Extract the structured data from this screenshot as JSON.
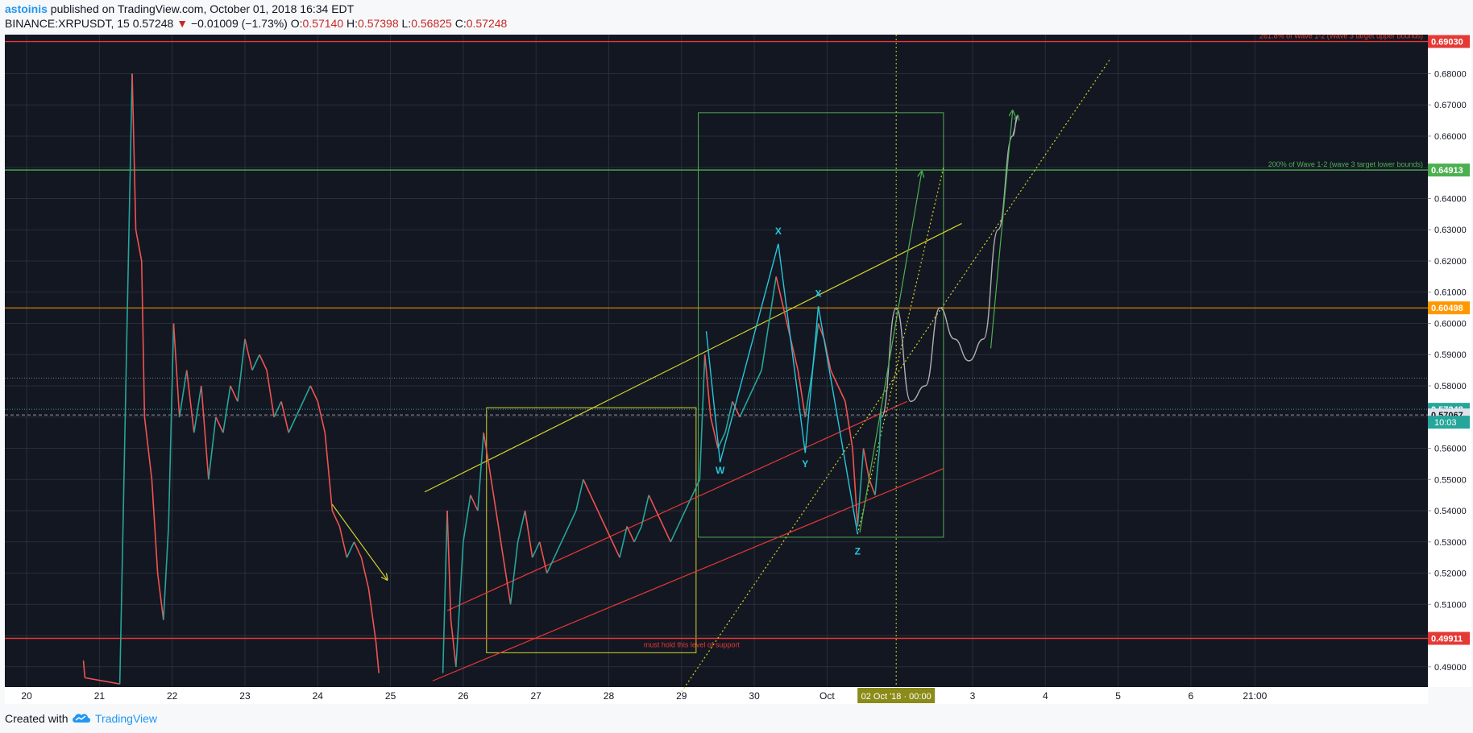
{
  "header": {
    "author": "astoinis",
    "published_text": "published on TradingView.com, October 01, 2018 16:34 EDT",
    "symbol": "BINANCE:XRPUSDT, 15",
    "last": "0.57248",
    "change_arrow": "▼",
    "change": "−0.01009 (−1.73%)",
    "o_label": "O:",
    "o_value": "0.57140",
    "h_label": "H:",
    "h_value": "0.57398",
    "l_label": "L:",
    "l_value": "0.56825",
    "c_label": "C:",
    "c_value": "0.57248"
  },
  "footer": {
    "created_with": "Created with",
    "brand": "TradingView",
    "logo_icon": "tradingview-cloud-icon"
  },
  "colors": {
    "background": "#131722",
    "candle_up": "#26a69a",
    "candle_down": "#ef5350",
    "red_line": "#e53935",
    "green_line": "#4caf50",
    "orange_line": "#ff9800",
    "yellow_line": "#d4d42a",
    "cyan_wave": "#26c6da",
    "projection": "#b0b0b0"
  },
  "chart_data": {
    "type": "candlestick",
    "symbol": "BINANCE:XRPUSDT",
    "interval": "15",
    "x_ticks": [
      "20",
      "21",
      "22",
      "23",
      "24",
      "25",
      "26",
      "27",
      "28",
      "29",
      "30",
      "Oct",
      "3",
      "4",
      "5",
      "6",
      "21:00"
    ],
    "y_ticks": [
      "0.49000",
      "0.50000",
      "0.51000",
      "0.52000",
      "0.53000",
      "0.54000",
      "0.55000",
      "0.56000",
      "0.57000",
      "0.58000",
      "0.59000",
      "0.60000",
      "0.61000",
      "0.62000",
      "0.63000",
      "0.64000",
      "0.65000",
      "0.66000",
      "0.67000",
      "0.68000"
    ],
    "ylim": [
      0.4835,
      0.6925
    ],
    "grid": true,
    "cursor_date_label": "02 Oct '18 · 00:00",
    "countdown_label": "10:03",
    "price_labels": [
      {
        "value": 0.6903,
        "text": "0.69030",
        "color": "#e53935",
        "text_color": "#ffffff"
      },
      {
        "value": 0.64913,
        "text": "0.64913",
        "color": "#4caf50",
        "text_color": "#ffffff"
      },
      {
        "value": 0.60498,
        "text": "0.60498",
        "color": "#ff9800",
        "text_color": "#ffffff"
      },
      {
        "value": 0.57248,
        "text": "0.57248",
        "color": "#26a69a",
        "text_color": "#ffffff"
      },
      {
        "value": 0.57067,
        "text": "0.57067",
        "color": "#e0e3eb",
        "text_color": "#131722"
      },
      {
        "value": 0.49911,
        "text": "0.49911",
        "color": "#e53935",
        "text_color": "#ffffff"
      }
    ],
    "horizontal_levels": [
      {
        "value": 0.6903,
        "color": "#e53935",
        "label": "261.8% of Wave 1-2 (Wave 3 target upper bounds)"
      },
      {
        "value": 0.64913,
        "color": "#4caf50",
        "label": "200% of Wave 1-2 (wave 3 target lower bounds)"
      },
      {
        "value": 0.60498,
        "color": "#ff9800",
        "label": ""
      },
      {
        "value": 0.49911,
        "color": "#e53935",
        "label": "must hold this level of support"
      }
    ],
    "wave_labels": [
      {
        "text": "W",
        "x": 29.53,
        "y": 0.5555
      },
      {
        "text": "X",
        "x": 30.33,
        "y": 0.6265
      },
      {
        "text": "Y",
        "x": 30.7,
        "y": 0.5575
      },
      {
        "text": "X",
        "x": 30.88,
        "y": 0.6065
      },
      {
        "text": "Z",
        "x": 31.42,
        "y": 0.5295
      }
    ],
    "wave_path": [
      [
        29.34,
        0.5975
      ],
      [
        29.53,
        0.5555
      ],
      [
        30.33,
        0.6255
      ],
      [
        30.7,
        0.5585
      ],
      [
        30.88,
        0.6055
      ],
      [
        31.42,
        0.5325
      ]
    ],
    "price_path": [
      [
        20.78,
        0.492
      ],
      [
        20.8,
        0.4865
      ],
      [
        21.28,
        0.4845
      ],
      [
        21.32,
        0.53
      ],
      [
        21.38,
        0.6
      ],
      [
        21.45,
        0.68
      ],
      [
        21.5,
        0.63
      ],
      [
        21.58,
        0.62
      ],
      [
        21.62,
        0.57
      ],
      [
        21.72,
        0.55
      ],
      [
        21.8,
        0.52
      ],
      [
        21.88,
        0.505
      ],
      [
        21.95,
        0.535
      ],
      [
        22.02,
        0.6
      ],
      [
        22.1,
        0.57
      ],
      [
        22.2,
        0.585
      ],
      [
        22.3,
        0.565
      ],
      [
        22.4,
        0.58
      ],
      [
        22.5,
        0.55
      ],
      [
        22.6,
        0.57
      ],
      [
        22.7,
        0.565
      ],
      [
        22.8,
        0.58
      ],
      [
        22.9,
        0.575
      ],
      [
        23.0,
        0.595
      ],
      [
        23.1,
        0.585
      ],
      [
        23.2,
        0.59
      ],
      [
        23.3,
        0.585
      ],
      [
        23.4,
        0.57
      ],
      [
        23.5,
        0.575
      ],
      [
        23.6,
        0.565
      ],
      [
        23.7,
        0.57
      ],
      [
        23.8,
        0.575
      ],
      [
        23.9,
        0.58
      ],
      [
        24.0,
        0.575
      ],
      [
        24.1,
        0.565
      ],
      [
        24.2,
        0.54
      ],
      [
        24.3,
        0.535
      ],
      [
        24.4,
        0.525
      ],
      [
        24.5,
        0.53
      ],
      [
        24.6,
        0.525
      ],
      [
        24.7,
        0.515
      ],
      [
        24.8,
        0.498
      ],
      [
        24.84,
        0.488
      ],
      [
        25.72,
        0.488
      ],
      [
        25.78,
        0.54
      ],
      [
        25.83,
        0.505
      ],
      [
        25.9,
        0.49
      ],
      [
        26.0,
        0.53
      ],
      [
        26.1,
        0.545
      ],
      [
        26.2,
        0.54
      ],
      [
        26.28,
        0.565
      ],
      [
        26.35,
        0.555
      ],
      [
        26.45,
        0.54
      ],
      [
        26.55,
        0.525
      ],
      [
        26.65,
        0.51
      ],
      [
        26.75,
        0.53
      ],
      [
        26.85,
        0.54
      ],
      [
        26.95,
        0.525
      ],
      [
        27.05,
        0.53
      ],
      [
        27.15,
        0.52
      ],
      [
        27.25,
        0.525
      ],
      [
        27.35,
        0.53
      ],
      [
        27.45,
        0.535
      ],
      [
        27.55,
        0.54
      ],
      [
        27.65,
        0.55
      ],
      [
        27.75,
        0.545
      ],
      [
        27.85,
        0.54
      ],
      [
        27.95,
        0.535
      ],
      [
        28.05,
        0.53
      ],
      [
        28.15,
        0.525
      ],
      [
        28.25,
        0.535
      ],
      [
        28.35,
        0.53
      ],
      [
        28.45,
        0.535
      ],
      [
        28.55,
        0.545
      ],
      [
        28.65,
        0.54
      ],
      [
        28.75,
        0.535
      ],
      [
        28.85,
        0.53
      ],
      [
        28.95,
        0.535
      ],
      [
        29.05,
        0.54
      ],
      [
        29.15,
        0.545
      ],
      [
        29.25,
        0.55
      ],
      [
        29.32,
        0.59
      ],
      [
        29.4,
        0.57
      ],
      [
        29.5,
        0.56
      ],
      [
        29.6,
        0.565
      ],
      [
        29.7,
        0.575
      ],
      [
        29.8,
        0.57
      ],
      [
        29.9,
        0.575
      ],
      [
        30.0,
        0.58
      ],
      [
        30.1,
        0.585
      ],
      [
        30.2,
        0.6
      ],
      [
        30.3,
        0.615
      ],
      [
        30.4,
        0.605
      ],
      [
        30.5,
        0.595
      ],
      [
        30.6,
        0.585
      ],
      [
        30.7,
        0.57
      ],
      [
        30.8,
        0.585
      ],
      [
        30.88,
        0.6
      ],
      [
        30.96,
        0.595
      ],
      [
        31.05,
        0.585
      ],
      [
        31.15,
        0.58
      ],
      [
        31.25,
        0.575
      ],
      [
        31.35,
        0.56
      ],
      [
        31.42,
        0.535
      ],
      [
        31.5,
        0.56
      ],
      [
        31.58,
        0.55
      ],
      [
        31.66,
        0.545
      ],
      [
        31.72,
        0.56
      ],
      [
        31.74,
        0.5725
      ]
    ],
    "projection_path": [
      [
        31.75,
        0.57
      ],
      [
        31.95,
        0.605
      ],
      [
        32.15,
        0.575
      ],
      [
        32.35,
        0.58
      ],
      [
        32.55,
        0.605
      ],
      [
        32.75,
        0.595
      ],
      [
        32.95,
        0.588
      ],
      [
        33.15,
        0.595
      ],
      [
        33.35,
        0.63
      ],
      [
        33.55,
        0.66
      ],
      [
        33.62,
        0.6665
      ]
    ],
    "trendlines": [
      {
        "from": [
          25.47,
          0.546
        ],
        "to": [
          32.85,
          0.632
        ],
        "color": "#d4d42a",
        "style": "solid"
      },
      {
        "from": [
          25.78,
          0.508
        ],
        "to": [
          32.1,
          0.575
        ],
        "color": "#e53935",
        "style": "solid"
      },
      {
        "from": [
          25.58,
          0.4855
        ],
        "to": [
          32.6,
          0.5535
        ],
        "color": "#e53935",
        "style": "solid"
      },
      {
        "from": [
          29.0,
          0.482
        ],
        "to": [
          34.9,
          0.685
        ],
        "color": "#d4d42a",
        "style": "dotted"
      },
      {
        "from": [
          31.42,
          0.5325
        ],
        "to": [
          32.6,
          0.65
        ],
        "color": "#d4d42a",
        "style": "dotted"
      }
    ],
    "arrows": [
      {
        "from": [
          24.2,
          0.542
        ],
        "to": [
          24.95,
          0.518
        ],
        "color": "#d4d42a"
      },
      {
        "from": [
          31.45,
          0.533
        ],
        "to": [
          32.3,
          0.6485
        ],
        "color": "#4caf50"
      },
      {
        "from": [
          33.25,
          0.592
        ],
        "to": [
          33.55,
          0.668
        ],
        "color": "#4caf50"
      }
    ],
    "boxes": [
      {
        "x0": 26.32,
        "x1": 29.2,
        "y0": 0.4945,
        "y1": 0.573,
        "color": "#d4d42a"
      },
      {
        "x0": 29.23,
        "x1": 32.6,
        "y0": 0.5315,
        "y1": 0.6675,
        "color": "#4caf50"
      }
    ],
    "cursor_x": 31.95,
    "last_price": 0.57248,
    "crosshair_price": 0.57067,
    "dotted_level": 0.5825
  }
}
